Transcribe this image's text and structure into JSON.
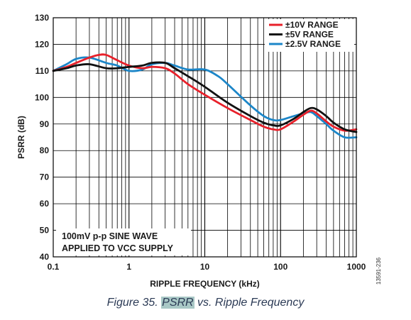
{
  "chart_data": {
    "type": "line",
    "title": "",
    "xlabel": "RIPPLE FREQUENCY (kHz)",
    "ylabel": "PSRR (dB)",
    "xscale": "log",
    "xlim": [
      0.1,
      1000
    ],
    "ylim": [
      40,
      130
    ],
    "x_ticks": [
      "0.1",
      "1",
      "10",
      "100",
      "1000"
    ],
    "y_ticks": [
      "40",
      "50",
      "60",
      "70",
      "80",
      "90",
      "100",
      "110",
      "120",
      "130"
    ],
    "grid": true,
    "legend_position": "top-right",
    "series": [
      {
        "name": "±10V RANGE",
        "color": "#e8202a",
        "points": [
          [
            0.1,
            110
          ],
          [
            0.15,
            111.5
          ],
          [
            0.2,
            113
          ],
          [
            0.3,
            115
          ],
          [
            0.4,
            116
          ],
          [
            0.5,
            116
          ],
          [
            0.7,
            114
          ],
          [
            1,
            112
          ],
          [
            1.5,
            111
          ],
          [
            2,
            111.5
          ],
          [
            3,
            111
          ],
          [
            4,
            109
          ],
          [
            6,
            105
          ],
          [
            10,
            101
          ],
          [
            20,
            96
          ],
          [
            40,
            91.5
          ],
          [
            60,
            89
          ],
          [
            80,
            88
          ],
          [
            100,
            88
          ],
          [
            150,
            91
          ],
          [
            200,
            93.5
          ],
          [
            250,
            95
          ],
          [
            300,
            94
          ],
          [
            400,
            91
          ],
          [
            500,
            89
          ],
          [
            700,
            87.5
          ],
          [
            1000,
            88
          ]
        ]
      },
      {
        "name": "±5V RANGE",
        "color": "#111111",
        "points": [
          [
            0.1,
            110
          ],
          [
            0.15,
            111
          ],
          [
            0.2,
            112
          ],
          [
            0.3,
            112.5
          ],
          [
            0.5,
            111
          ],
          [
            0.7,
            111
          ],
          [
            1,
            111.5
          ],
          [
            1.5,
            112
          ],
          [
            2,
            113
          ],
          [
            3,
            113
          ],
          [
            4,
            111
          ],
          [
            6,
            108
          ],
          [
            10,
            104
          ],
          [
            20,
            98
          ],
          [
            40,
            93
          ],
          [
            60,
            90.5
          ],
          [
            80,
            89.5
          ],
          [
            100,
            89.5
          ],
          [
            150,
            92
          ],
          [
            200,
            94.5
          ],
          [
            250,
            96
          ],
          [
            300,
            95.5
          ],
          [
            400,
            93
          ],
          [
            500,
            90.5
          ],
          [
            700,
            88
          ],
          [
            1000,
            87
          ]
        ]
      },
      {
        "name": "±2.5V RANGE",
        "color": "#1c86c8",
        "points": [
          [
            0.1,
            110
          ],
          [
            0.15,
            112.5
          ],
          [
            0.2,
            114.5
          ],
          [
            0.3,
            115
          ],
          [
            0.5,
            113
          ],
          [
            0.7,
            112
          ],
          [
            1,
            110
          ],
          [
            1.5,
            110.5
          ],
          [
            2,
            112.5
          ],
          [
            3,
            113
          ],
          [
            4,
            112
          ],
          [
            6,
            110.5
          ],
          [
            10,
            110.5
          ],
          [
            15,
            108
          ],
          [
            20,
            105
          ],
          [
            40,
            97
          ],
          [
            60,
            93
          ],
          [
            80,
            91.5
          ],
          [
            100,
            91.5
          ],
          [
            150,
            93
          ],
          [
            200,
            94
          ],
          [
            250,
            94.5
          ],
          [
            300,
            93
          ],
          [
            400,
            90
          ],
          [
            500,
            87.5
          ],
          [
            700,
            85
          ],
          [
            1000,
            85
          ]
        ]
      }
    ],
    "annotation": [
      "100mV p-p SINE WAVE",
      "APPLIED TO VCC SUPPLY"
    ]
  },
  "figure_code": "13591-236",
  "caption": {
    "prefix": "Figure 35. ",
    "highlight": "PSRR",
    "suffix": " vs. Ripple Frequency"
  }
}
